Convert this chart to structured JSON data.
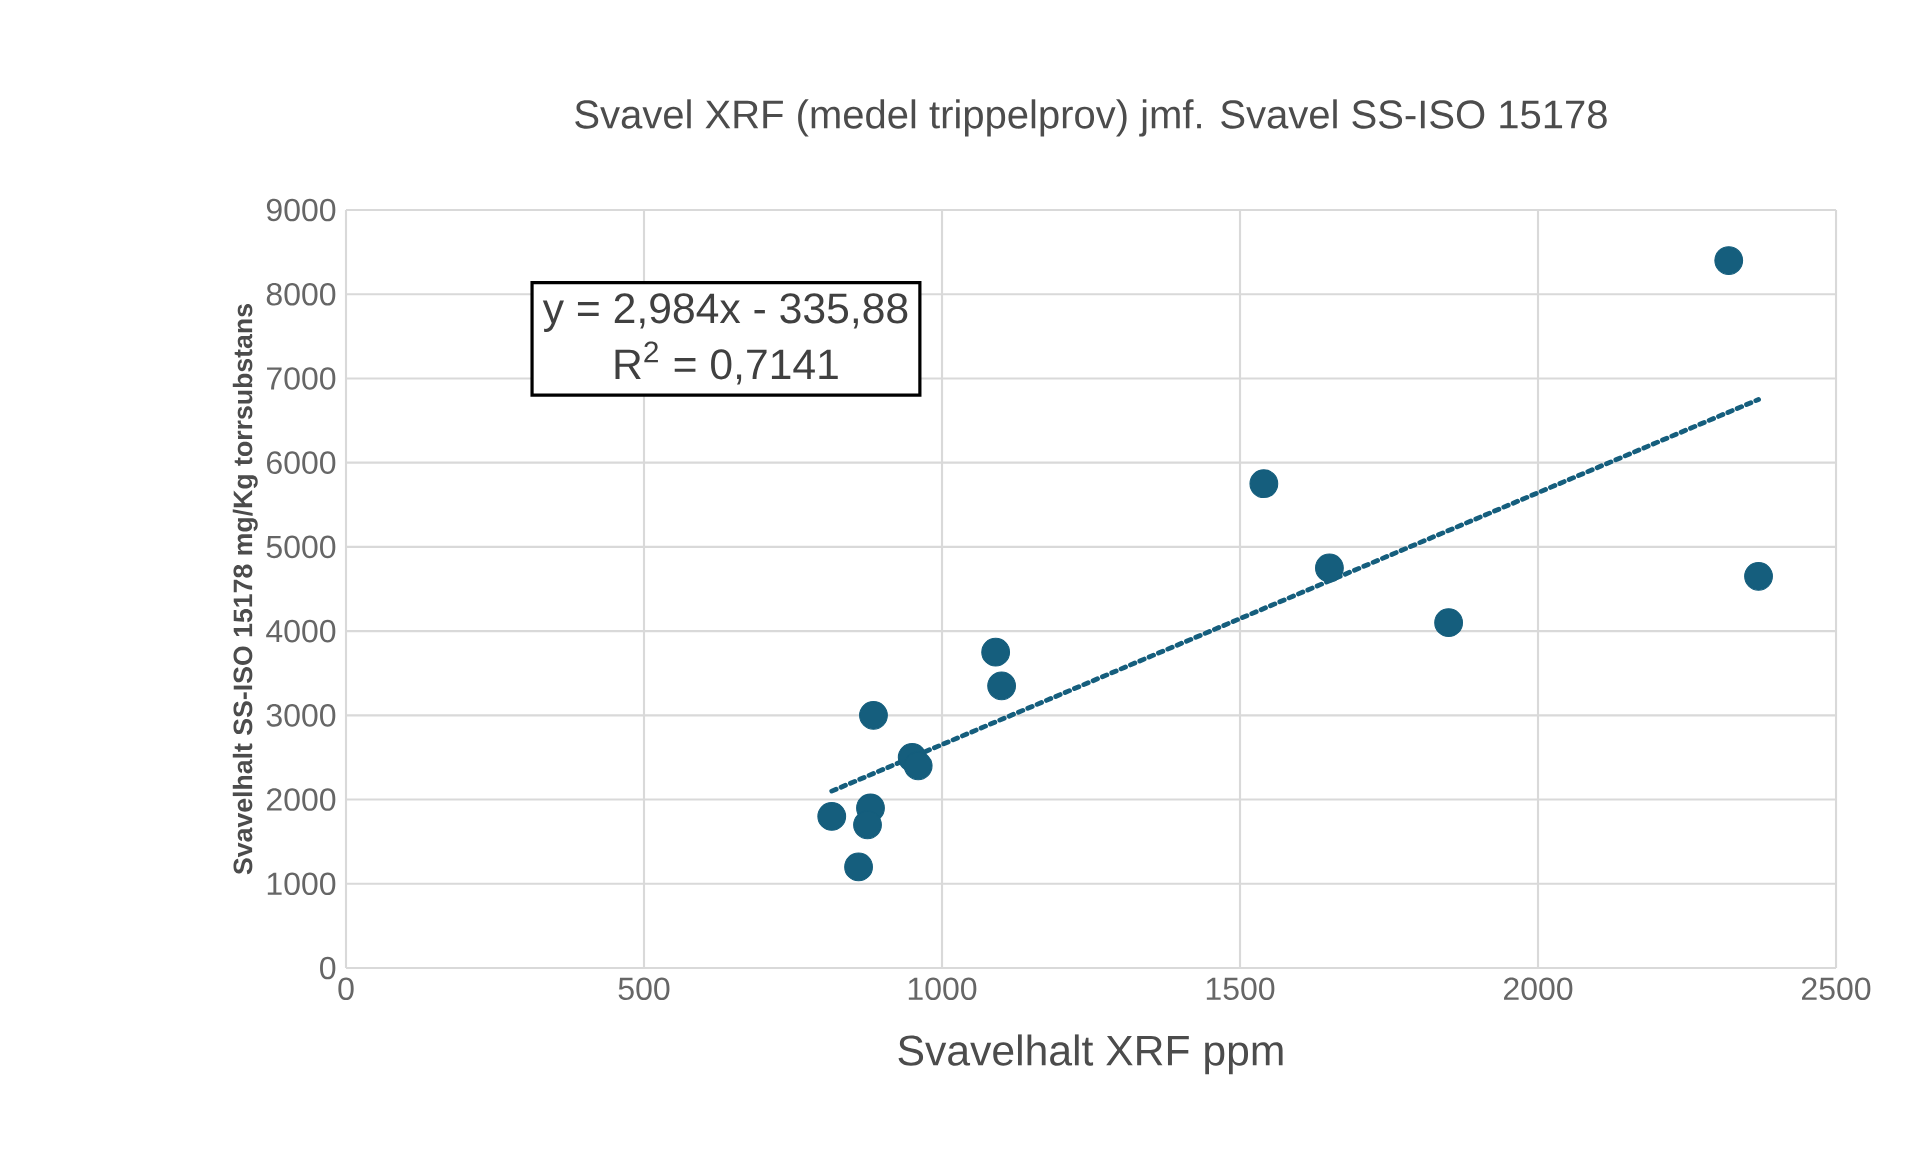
{
  "chart_data": {
    "type": "scatter",
    "title": "Svavel XRF (medel trippelprov) jmf. Svavel SS-ISO 15178",
    "xlabel": "Svavelhalt XRF ppm",
    "ylabel": "Svavelhalt SS-ISO 15178 mg/Kg torrsubstans",
    "xlim": [
      0,
      2500
    ],
    "xticks": [
      0,
      500,
      1000,
      1500,
      2000,
      2500
    ],
    "ylim": [
      0,
      9000
    ],
    "yticks": [
      0,
      1000,
      2000,
      3000,
      4000,
      5000,
      6000,
      7000,
      8000,
      9000
    ],
    "grid": true,
    "marker": "circle",
    "series": [
      {
        "color": "#155e7d",
        "x": [
          815,
          860,
          880,
          875,
          885,
          950,
          960,
          1090,
          1100,
          1540,
          1650,
          1850,
          2320,
          2370
        ],
        "values": [
          1800,
          1200,
          1900,
          1700,
          3000,
          2500,
          2400,
          3750,
          3350,
          5750,
          4750,
          4100,
          8400,
          4650
        ]
      },
      {
        "type": "line",
        "color": "#155e7d",
        "line_style": "dotted",
        "marker": "none",
        "x": [
          815,
          2370
        ],
        "values": [
          2100,
          6750
        ]
      }
    ],
    "annotations": [
      "y = 2,984x - 335,88",
      "R$^{2}$ = 0,7141"
    ]
  }
}
